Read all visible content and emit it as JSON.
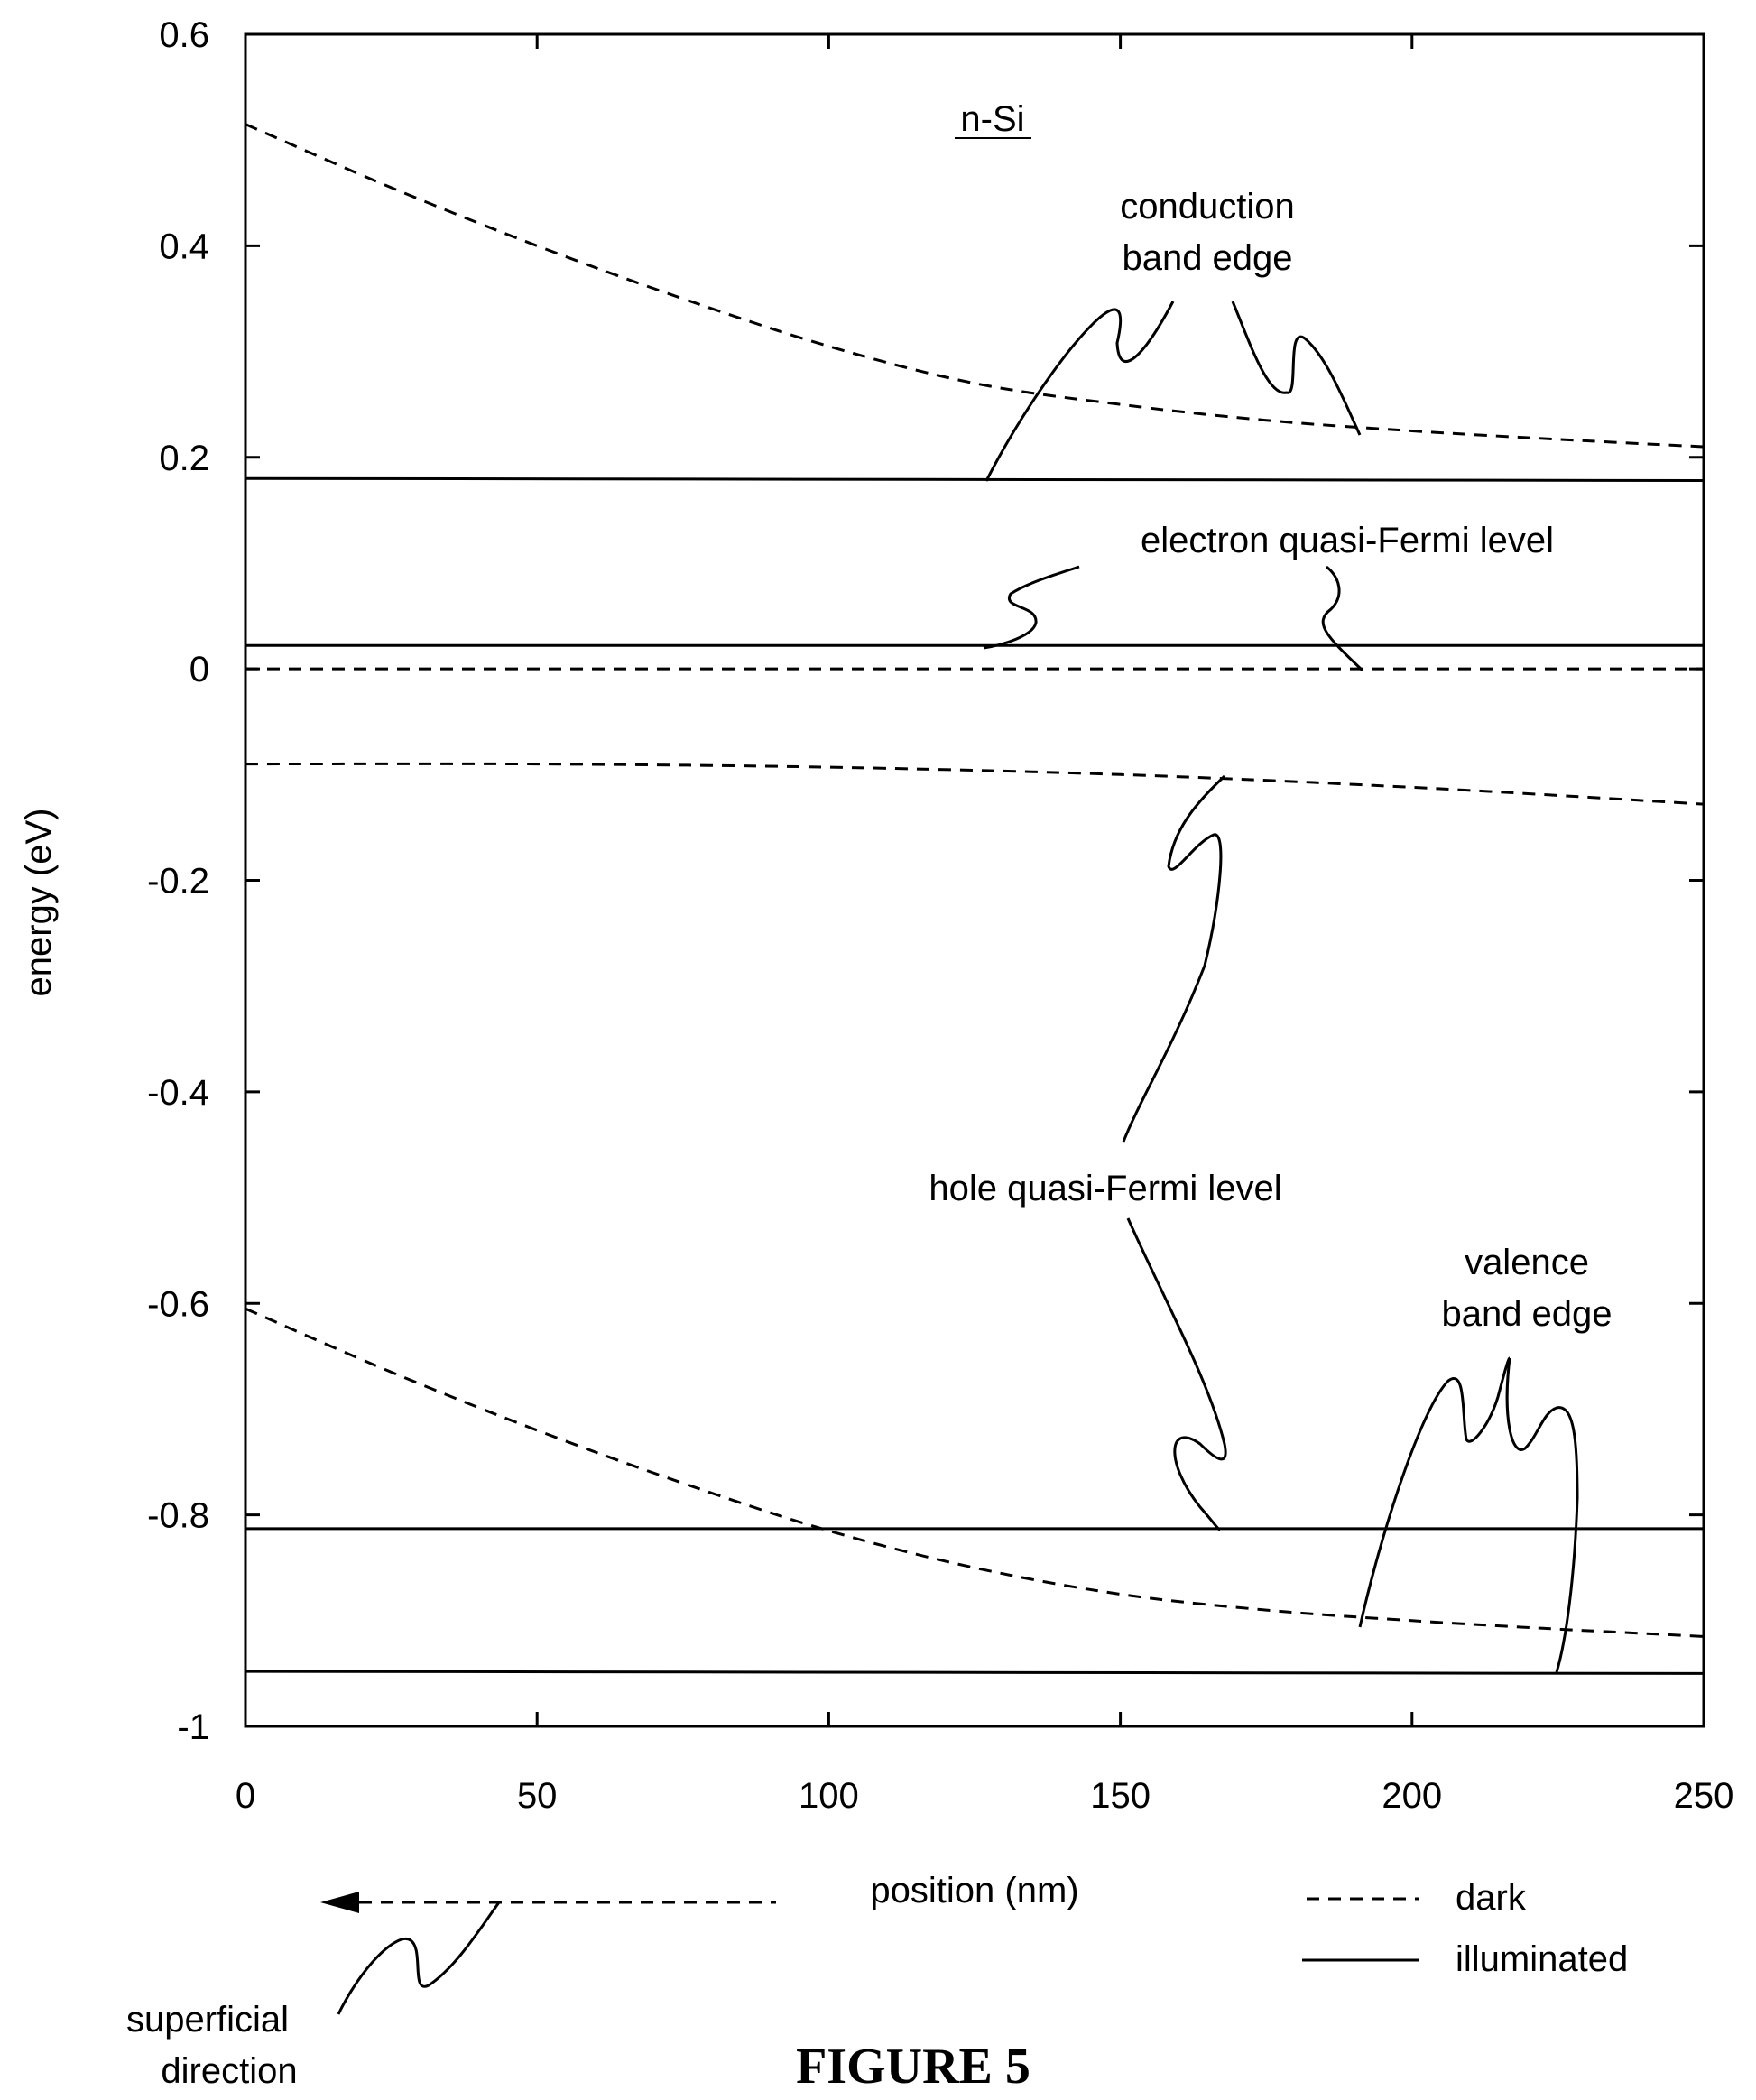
{
  "chart_data": {
    "type": "line",
    "xlabel": "position (nm)",
    "ylabel": "energy (eV)",
    "xlim": [
      0,
      250
    ],
    "ylim": [
      -1,
      0.6
    ],
    "x_ticks": [
      0,
      50,
      100,
      150,
      200,
      250
    ],
    "y_ticks": [
      0.6,
      0.4,
      0.2,
      0,
      -0.2,
      -0.4,
      -0.6,
      -0.8,
      -1
    ],
    "y_tick_labels": [
      "0.6",
      "0.4",
      "0.2",
      "0",
      "-0.2",
      "-0.4",
      "-0.6",
      "-0.8",
      "-1"
    ],
    "grid": false,
    "material_label": "n-Si",
    "series": [
      {
        "group": "conduction band edge",
        "style": "dark",
        "x": [
          0,
          25,
          50,
          75,
          100,
          125,
          150,
          175,
          200,
          225,
          250
        ],
        "y": [
          0.515,
          0.455,
          0.4,
          0.35,
          0.305,
          0.27,
          0.25,
          0.235,
          0.225,
          0.217,
          0.21
        ]
      },
      {
        "group": "conduction band edge",
        "style": "illuminated",
        "x": [
          0,
          250
        ],
        "y": [
          0.18,
          0.178
        ]
      },
      {
        "group": "electron quasi-Fermi level",
        "style": "dark",
        "x": [
          0,
          250
        ],
        "y": [
          0.0,
          0.0
        ]
      },
      {
        "group": "electron quasi-Fermi level",
        "style": "illuminated",
        "x": [
          0,
          250
        ],
        "y": [
          0.022,
          0.022
        ]
      },
      {
        "group": "hole quasi-Fermi level",
        "style": "dark",
        "x": [
          0,
          50,
          100,
          150,
          200,
          250
        ],
        "y": [
          -0.09,
          -0.09,
          -0.093,
          -0.1,
          -0.112,
          -0.128
        ]
      },
      {
        "group": "hole quasi-Fermi level",
        "style": "illuminated",
        "x": [
          0,
          250
        ],
        "y": [
          -0.813,
          -0.813
        ]
      },
      {
        "group": "valence band edge",
        "style": "dark",
        "x": [
          0,
          25,
          50,
          75,
          100,
          125,
          150,
          175,
          200,
          225,
          250
        ],
        "y": [
          -0.605,
          -0.665,
          -0.72,
          -0.77,
          -0.815,
          -0.85,
          -0.875,
          -0.89,
          -0.9,
          -0.908,
          -0.915
        ]
      },
      {
        "group": "valence band edge",
        "style": "illuminated",
        "x": [
          0,
          250
        ],
        "y": [
          -0.948,
          -0.95
        ]
      }
    ],
    "annotations": [
      {
        "text_lines": [
          "conduction",
          "band edge"
        ]
      },
      {
        "text_lines": [
          "electron quasi-Fermi level"
        ]
      },
      {
        "text_lines": [
          "hole quasi-Fermi level"
        ]
      },
      {
        "text_lines": [
          "valence",
          "band edge"
        ]
      }
    ],
    "legend": {
      "placement": "bottom-right",
      "entries": [
        {
          "label": "dark",
          "style": "dashed"
        },
        {
          "label": "illuminated",
          "style": "solid"
        }
      ]
    },
    "direction_arrow": {
      "label_lines": [
        "superficial",
        "direction"
      ]
    }
  },
  "figure_caption": "FIGURE 5"
}
